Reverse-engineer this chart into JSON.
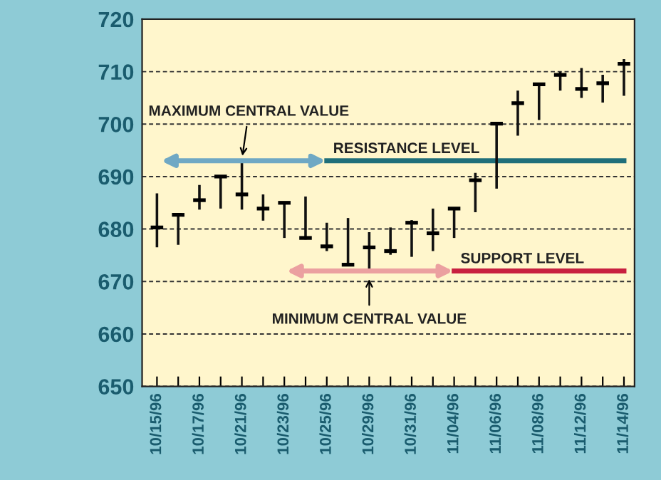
{
  "chart_data": {
    "type": "bar",
    "categories": [
      "10/15/96",
      null,
      "10/17/96",
      null,
      "10/21/96",
      null,
      "10/23/96",
      null,
      "10/25/96",
      null,
      "10/29/96",
      null,
      "10/31/96",
      null,
      "11/04/96",
      null,
      "11/06/96",
      null,
      "11/08/96",
      null,
      "11/12/96",
      null,
      "11/14/96"
    ],
    "series": [
      {
        "color": "#111111",
        "base": [
          676.5,
          677.0,
          683.7,
          683.9,
          683.7,
          681.6,
          678.3,
          678.0,
          675.8,
          673.1,
          672.0,
          675.1,
          674.7,
          675.8,
          678.3,
          683.2,
          687.7,
          697.8,
          700.8,
          706.4,
          705.0,
          704.1,
          705.4
        ],
        "values": [
          10.3,
          5.8,
          4.7,
          6.3,
          9.2,
          5.0,
          6.9,
          8.2,
          5.4,
          9.0,
          7.4,
          5.2,
          7.0,
          8.1,
          5.8,
          7.5,
          12.7,
          8.6,
          7.0,
          3.6,
          5.7,
          5.3,
          7.0
        ]
      },
      {
        "type": "scatter",
        "color": "#000000",
        "values": [
          680.3,
          682.7,
          685.5,
          690.0,
          686.6,
          683.9,
          685.0,
          678.3,
          676.7,
          673.2,
          676.5,
          675.8,
          681.2,
          679.2,
          683.9,
          689.3,
          700.1,
          704.0,
          707.6,
          709.4,
          706.7,
          707.8,
          711.5
        ]
      },
      {
        "type": "line",
        "name": "RESISTANCE LEVEL",
        "color": "#1f6f7a",
        "values": [
          null,
          null,
          null,
          null,
          null,
          null,
          null,
          null,
          693,
          693,
          693,
          693,
          693,
          693,
          693,
          693,
          693,
          693,
          693,
          693,
          693,
          693,
          693
        ]
      },
      {
        "type": "line",
        "name": "SUPPORT LEVEL",
        "color": "#c8203f",
        "values": [
          null,
          null,
          null,
          null,
          null,
          null,
          null,
          null,
          null,
          null,
          null,
          null,
          null,
          null,
          672,
          672,
          672,
          672,
          672,
          672,
          672,
          672,
          672
        ]
      }
    ],
    "annotations": [
      "MAXIMUM CENTRAL VALUE",
      "MINIMUM CENTRAL VALUE"
    ],
    "ylim": [
      650,
      720
    ],
    "yticks": [
      650,
      660,
      670,
      680,
      690,
      700,
      710,
      720
    ],
    "grid": "y"
  }
}
